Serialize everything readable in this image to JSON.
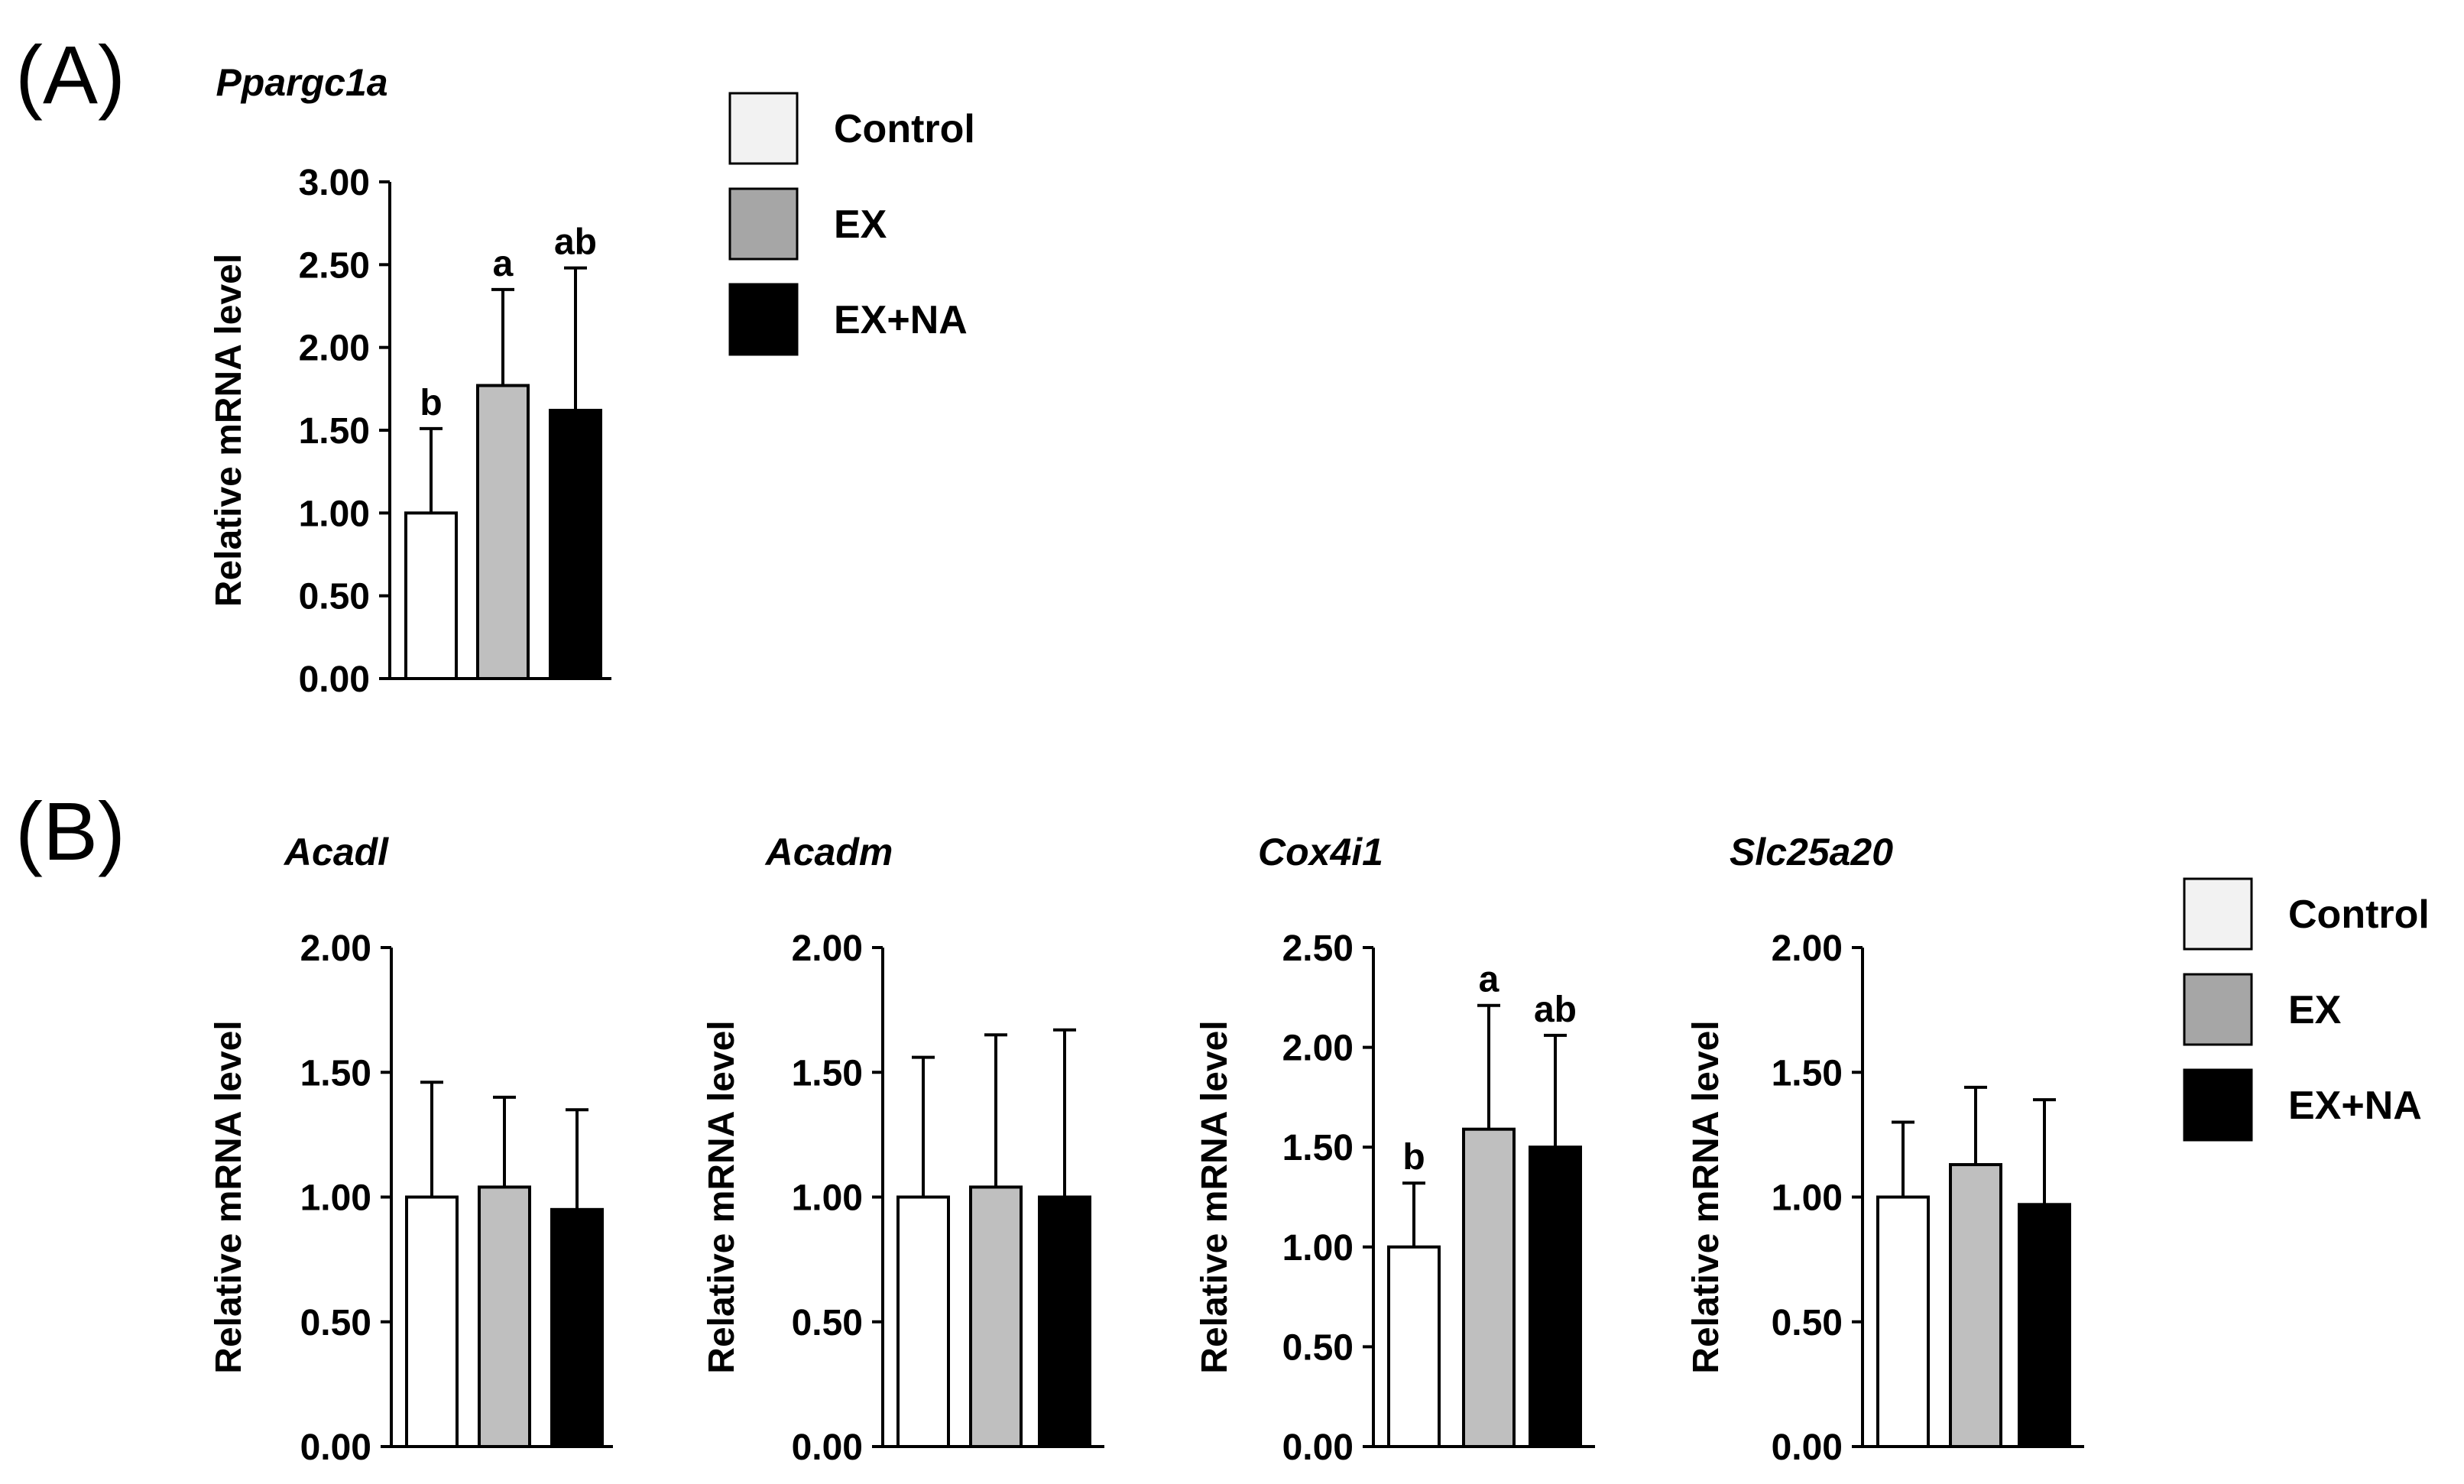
{
  "panel_labels": {
    "a": "(A)",
    "b": "(B)"
  },
  "legend_a": [
    {
      "label": "Control",
      "color": "#f2f2f2"
    },
    {
      "label": "EX",
      "color": "#a6a6a6"
    },
    {
      "label": "EX+NA",
      "color": "#000000"
    }
  ],
  "legend_b": [
    {
      "label": "Control",
      "color": "#f2f2f2"
    },
    {
      "label": "EX",
      "color": "#a6a6a6"
    },
    {
      "label": "EX+NA",
      "color": "#000000"
    }
  ],
  "chart_data": [
    {
      "type": "bar",
      "title": "Ppargc1a",
      "ylabel": "Relative mRNA level",
      "xlabel": "",
      "ylim": [
        0,
        3.0
      ],
      "yticks": [
        "0.00",
        "0.50",
        "1.00",
        "1.50",
        "2.00",
        "2.50",
        "3.00"
      ],
      "categories": [
        "Control",
        "EX",
        "EX+NA"
      ],
      "values": [
        1.0,
        1.77,
        1.62
      ],
      "errors": [
        0.51,
        0.58,
        0.86
      ],
      "significance": [
        "b",
        "a",
        "ab"
      ],
      "colors": [
        "#ffffff",
        "#bfbfbf",
        "#000000"
      ]
    },
    {
      "type": "bar",
      "title": "Acadl",
      "ylabel": "Relative mRNA level",
      "xlabel": "",
      "ylim": [
        0,
        2.0
      ],
      "yticks": [
        "0.00",
        "0.50",
        "1.00",
        "1.50",
        "2.00"
      ],
      "categories": [
        "Control",
        "EX",
        "EX+NA"
      ],
      "values": [
        1.0,
        1.04,
        0.95
      ],
      "errors": [
        0.46,
        0.36,
        0.4
      ],
      "significance": [
        "",
        "",
        ""
      ],
      "colors": [
        "#ffffff",
        "#bfbfbf",
        "#000000"
      ]
    },
    {
      "type": "bar",
      "title": "Acadm",
      "ylabel": "Relative mRNA level",
      "xlabel": "",
      "ylim": [
        0,
        2.0
      ],
      "yticks": [
        "0.00",
        "0.50",
        "1.00",
        "1.50",
        "2.00"
      ],
      "categories": [
        "Control",
        "EX",
        "EX+NA"
      ],
      "values": [
        1.0,
        1.04,
        1.0
      ],
      "errors": [
        0.56,
        0.61,
        0.67
      ],
      "significance": [
        "",
        "",
        ""
      ],
      "colors": [
        "#ffffff",
        "#bfbfbf",
        "#000000"
      ]
    },
    {
      "type": "bar",
      "title": "Cox4i1",
      "ylabel": "Relative mRNA level",
      "xlabel": "",
      "ylim": [
        0,
        2.5
      ],
      "yticks": [
        "0.00",
        "0.50",
        "1.00",
        "1.50",
        "2.00",
        "2.50"
      ],
      "categories": [
        "Control",
        "EX",
        "EX+NA"
      ],
      "values": [
        1.0,
        1.59,
        1.5
      ],
      "errors": [
        0.32,
        0.62,
        0.56
      ],
      "significance": [
        "b",
        "a",
        "ab"
      ],
      "colors": [
        "#ffffff",
        "#bfbfbf",
        "#000000"
      ]
    },
    {
      "type": "bar",
      "title": "Slc25a20",
      "ylabel": "Relative mRNA level",
      "xlabel": "",
      "ylim": [
        0,
        2.0
      ],
      "yticks": [
        "0.00",
        "0.50",
        "1.00",
        "1.50",
        "2.00"
      ],
      "categories": [
        "Control",
        "EX",
        "EX+NA"
      ],
      "values": [
        1.0,
        1.13,
        0.97
      ],
      "errors": [
        0.3,
        0.31,
        0.42
      ],
      "significance": [
        "",
        "",
        ""
      ],
      "colors": [
        "#ffffff",
        "#bfbfbf",
        "#000000"
      ]
    }
  ]
}
